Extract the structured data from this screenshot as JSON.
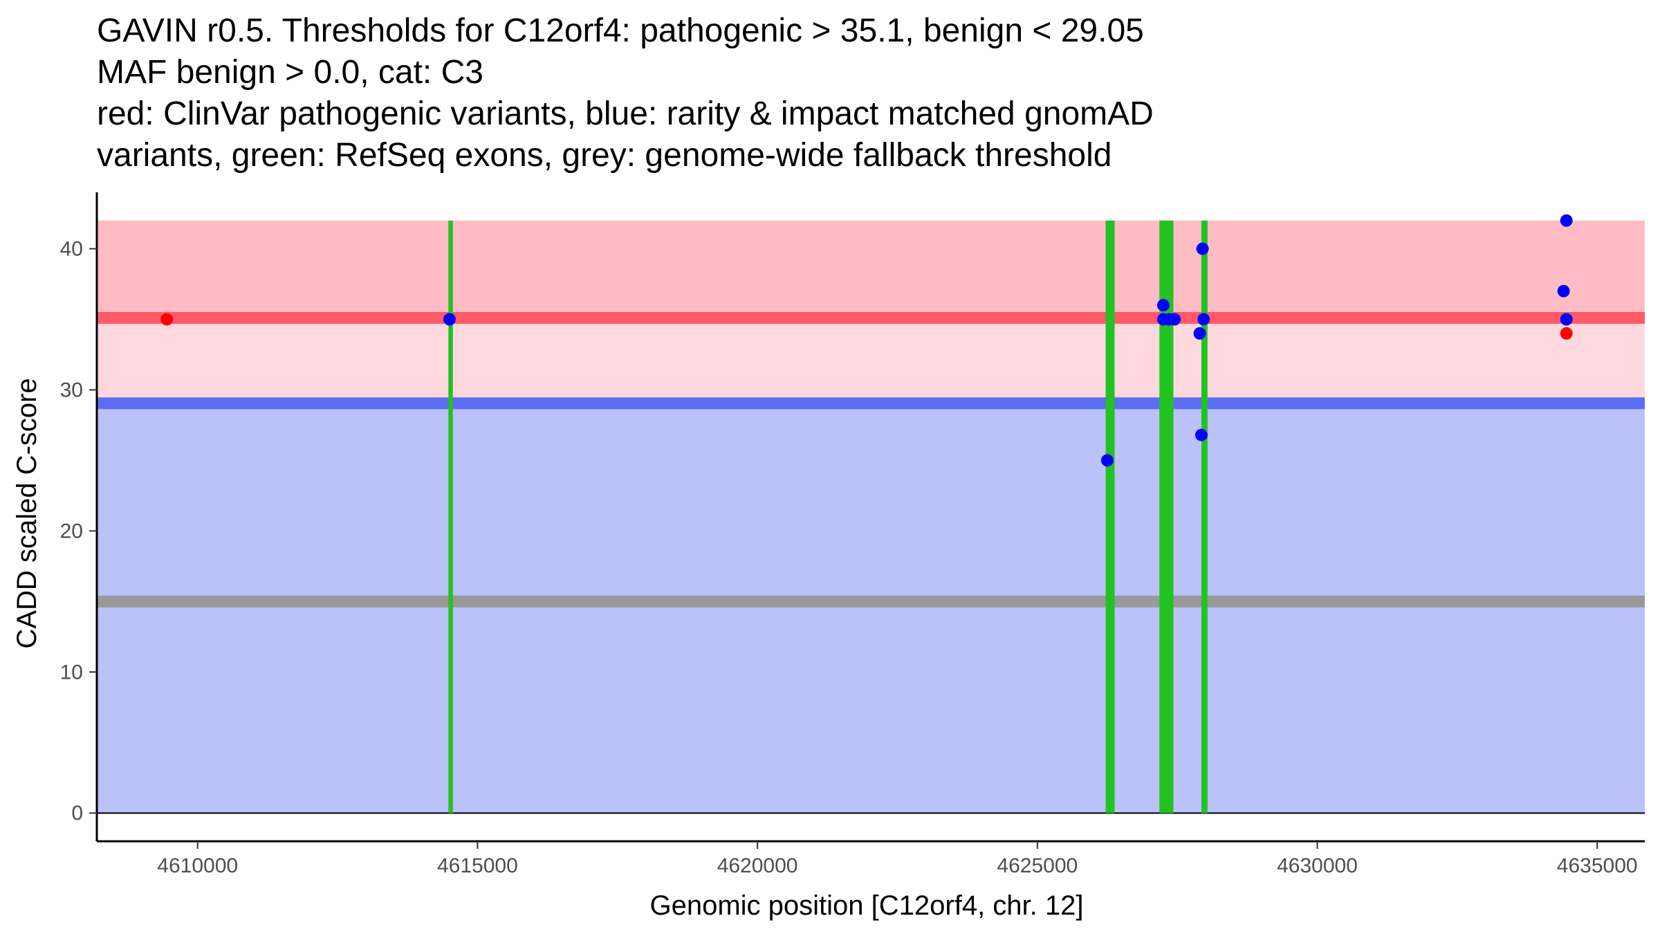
{
  "chart_data": {
    "type": "scatter",
    "title_lines": [
      "GAVIN r0.5. Thresholds for C12orf4: pathogenic > 35.1, benign < 29.05",
      "MAF benign > 0.0, cat: C3",
      "red: ClinVar pathogenic variants, blue: rarity & impact matched gnomAD",
      "variants, green: RefSeq exons, grey: genome-wide fallback threshold"
    ],
    "xlabel": "Genomic position [C12orf4, chr. 12]",
    "ylabel": "CADD scaled C-score",
    "xlim": [
      4608200,
      4635850
    ],
    "ylim": [
      -2,
      44
    ],
    "x_ticks": [
      4610000,
      4615000,
      4620000,
      4625000,
      4630000,
      4635000
    ],
    "x_tick_labels": [
      "4610000",
      "4615000",
      "4620000",
      "4625000",
      "4630000",
      "4635000"
    ],
    "y_ticks": [
      0,
      10,
      20,
      30,
      40
    ],
    "y_tick_labels": [
      "0",
      "10",
      "20",
      "30",
      "40"
    ],
    "regions": [
      {
        "name": "pathogenic-upper",
        "y0": 35.1,
        "y1": 42,
        "color": "#ffbcc4"
      },
      {
        "name": "pathogenic-lower",
        "y0": 29.05,
        "y1": 35.1,
        "color": "#ffd8de"
      },
      {
        "name": "benign",
        "y0": 0,
        "y1": 29.05,
        "color": "#bbc1f9"
      }
    ],
    "threshold_lines": [
      {
        "name": "pathogenic-threshold",
        "y": 35.1,
        "color": "#ff5a66"
      },
      {
        "name": "benign-threshold",
        "y": 29.05,
        "color": "#5a6ef2"
      },
      {
        "name": "fallback-threshold",
        "y": 15,
        "color": "#999999"
      }
    ],
    "exons": [
      {
        "start": 4614480,
        "end": 4614560
      },
      {
        "start": 4626220,
        "end": 4626380
      },
      {
        "start": 4627180,
        "end": 4627430
      },
      {
        "start": 4627930,
        "end": 4628040
      }
    ],
    "series": [
      {
        "name": "gnomAD variants",
        "color": "#0000ff",
        "points": [
          {
            "x": 4614500,
            "y": 35
          },
          {
            "x": 4626250,
            "y": 25
          },
          {
            "x": 4627250,
            "y": 36
          },
          {
            "x": 4627250,
            "y": 35
          },
          {
            "x": 4627350,
            "y": 35
          },
          {
            "x": 4627450,
            "y": 35
          },
          {
            "x": 4627900,
            "y": 34
          },
          {
            "x": 4627930,
            "y": 26.8
          },
          {
            "x": 4627950,
            "y": 40
          },
          {
            "x": 4627970,
            "y": 35
          },
          {
            "x": 4634400,
            "y": 37
          },
          {
            "x": 4634450,
            "y": 42
          },
          {
            "x": 4634450,
            "y": 35
          }
        ]
      },
      {
        "name": "ClinVar pathogenic variants",
        "color": "#ff0000",
        "points": [
          {
            "x": 4609450,
            "y": 35
          },
          {
            "x": 4634450,
            "y": 34
          }
        ]
      }
    ]
  }
}
